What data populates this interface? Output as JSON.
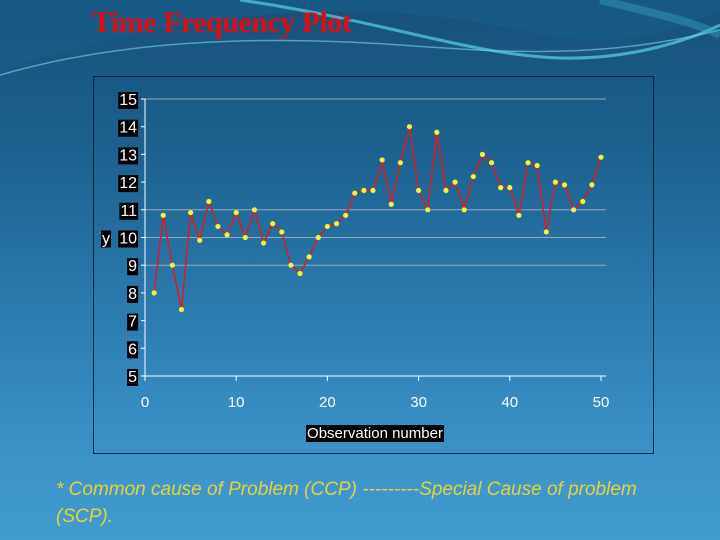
{
  "slide": {
    "title": "Time Frequency Plot",
    "footnote": "* Common cause of Problem (CCP) ---------Special Cause of problem (SCP).",
    "colors": {
      "title": "#e00d10",
      "footnote": "#e8d23a",
      "line": "#d0202a",
      "marker": "#f4f33c",
      "gridline": "#9aa8b8",
      "axis": "#ffffff",
      "label_bg": "#000000",
      "label_fg": "#ffffff"
    }
  },
  "chart_data": {
    "type": "line",
    "title": "",
    "xlabel": "Observation number",
    "ylabel": "y",
    "xlim": [
      0,
      50
    ],
    "ylim": [
      5,
      15
    ],
    "x_ticks": [
      0,
      10,
      20,
      30,
      40,
      50
    ],
    "y_ticks": [
      5,
      6,
      7,
      8,
      9,
      10,
      11,
      12,
      13,
      14,
      15
    ],
    "gridlines_y": [
      9,
      10,
      11,
      15
    ],
    "grid": true,
    "legend": null,
    "series": [
      {
        "name": "y",
        "x": [
          1,
          2,
          3,
          4,
          5,
          6,
          7,
          8,
          9,
          10,
          11,
          12,
          13,
          14,
          15,
          16,
          17,
          18,
          19,
          20,
          21,
          22,
          23,
          24,
          25,
          26,
          27,
          28,
          29,
          30,
          31,
          32,
          33,
          34,
          35,
          36,
          37,
          38,
          39,
          40,
          41,
          42,
          43,
          44,
          45,
          46,
          47,
          48,
          49,
          50
        ],
        "values": [
          8.0,
          10.8,
          9.0,
          7.4,
          10.9,
          9.9,
          11.3,
          10.4,
          10.1,
          10.9,
          10.0,
          11.0,
          9.8,
          10.5,
          10.2,
          9.0,
          8.7,
          9.3,
          10.0,
          10.4,
          10.5,
          10.8,
          11.6,
          11.7,
          11.7,
          12.8,
          11.2,
          12.7,
          14.0,
          11.7,
          11.0,
          13.8,
          11.7,
          12.0,
          11.0,
          12.2,
          13.0,
          12.7,
          11.8,
          11.8,
          10.8,
          12.7,
          12.6,
          10.2,
          12.0,
          11.9,
          11.0,
          11.3,
          11.9,
          12.9
        ]
      }
    ]
  }
}
